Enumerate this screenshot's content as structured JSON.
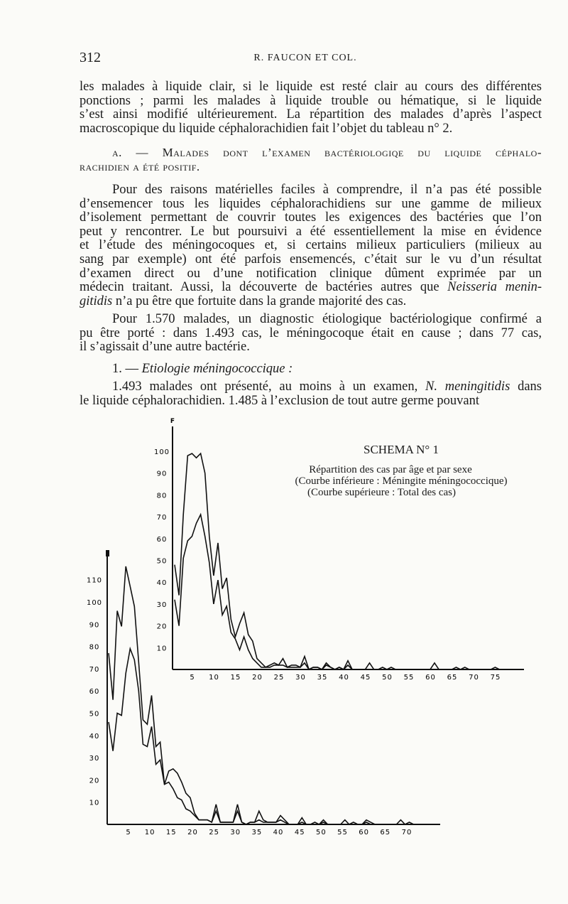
{
  "header": {
    "page_number": "312",
    "running_head": "R. FAUCON ET COL."
  },
  "body": {
    "p1": [
      [
        {
          "text": "les malades à liquide clair, si le liquide est resté clair au cours des différentes"
        }
      ],
      [
        {
          "text": "ponctions ; parmi les malades à liquide trouble ou hématique, si le liquide"
        }
      ],
      [
        {
          "text": "s’est ainsi modifié ultérieurement. La répartition des malades d’après l’aspect"
        }
      ],
      [
        {
          "text": "macroscopique du liquide céphalorachidien fait l’objet du tableau n° 2."
        }
      ]
    ],
    "heading_a": [
      [
        {
          "text": "a. — Malades dont l’examen bactériologiqe du liquide céphalo-"
        }
      ],
      [
        {
          "text": "rachidien a été positif."
        }
      ]
    ],
    "p2": [
      [
        {
          "text": "Pour des raisons matérielles faciles à comprendre, il n’a pas été possible"
        }
      ],
      [
        {
          "text": "d’ensemencer tous les liquides céphalorachidiens sur une gamme de milieux"
        }
      ],
      [
        {
          "text": "d’isolement permettant de couvrir toutes les exigences des bactéries que l’on"
        }
      ],
      [
        {
          "text": "peut y rencontrer. Le but poursuivi a été essentiellement la mise en évidence"
        }
      ],
      [
        {
          "text": "et l’étude des méningocoques et, si certains milieux particuliers (milieux au"
        }
      ],
      [
        {
          "text": "sang par exemple) ont été parfois ensemencés, c’était sur le vu d’un résultat"
        }
      ],
      [
        {
          "text": "d’examen direct ou d’une notification clinique dûment exprimée par un"
        }
      ],
      [
        {
          "text": "médecin traitant. Aussi, la découverte de bactéries autres que "
        },
        {
          "text": "Neisseria menin-",
          "italic": true
        }
      ],
      [
        {
          "text": "gitidis",
          "italic": true
        },
        {
          "text": " n’a pu être que fortuite dans la grande majorité des cas."
        }
      ]
    ],
    "p3": [
      [
        {
          "text": "Pour 1.570 malades, un diagnostic étiologique bactériologique confirmé a"
        }
      ],
      [
        {
          "text": "pu être porté : dans 1.493 cas, le méningocoque était en cause ; dans 77 cas,"
        }
      ],
      [
        {
          "text": "il s’agissait d’une autre bactérie."
        }
      ]
    ],
    "heading_1": [
      [
        {
          "text": "1. — "
        },
        {
          "text": "Etiologie méningococcique :",
          "italic": true
        }
      ]
    ],
    "p4": [
      [
        {
          "text": "1.493 malades ont présenté, au moins à un examen, "
        },
        {
          "text": "N. meningitidis",
          "italic": true
        },
        {
          "text": " dans"
        }
      ],
      [
        {
          "text": "le liquide céphalorachidien. 1.485 à l’exclusion de tout autre germe pouvant"
        }
      ]
    ]
  },
  "schema": {
    "title": "SCHEMA N° 1",
    "line1": "Répartition des cas par âge et par sexe",
    "line2": "(Courbe inférieure : Méningite méningococcique)",
    "line3": "(Courbe supérieure : Total des cas)"
  },
  "chart_data": [
    {
      "type": "line",
      "panel": "upper",
      "ylabel": "F",
      "x_ticks": [
        5,
        10,
        15,
        20,
        25,
        30,
        35,
        40,
        45,
        50,
        55,
        60,
        65,
        70,
        75
      ],
      "y_ticks": [
        10,
        20,
        30,
        40,
        50,
        60,
        70,
        80,
        90,
        100
      ],
      "ylim": [
        0,
        110
      ],
      "xlim": [
        0,
        80
      ],
      "grid": false,
      "x": [
        1,
        2,
        3,
        4,
        5,
        6,
        7,
        8,
        9,
        10,
        11,
        12,
        13,
        14,
        15,
        16,
        17,
        18,
        19,
        20,
        21,
        22,
        23,
        24,
        25,
        26,
        27,
        28,
        29,
        30,
        31,
        32,
        33,
        34,
        35,
        36,
        37,
        38,
        39,
        40,
        41,
        42,
        43,
        44,
        45,
        46,
        47,
        48,
        49,
        50,
        51,
        52,
        53,
        54,
        55,
        56,
        57,
        58,
        59,
        60,
        61,
        62,
        63,
        64,
        65,
        66,
        67,
        68,
        69,
        70,
        71,
        72,
        73,
        74,
        75,
        76,
        77,
        78,
        79
      ],
      "series": [
        {
          "values": [
            48,
            34,
            71,
            98,
            99,
            97,
            99,
            90,
            61,
            43,
            58,
            37,
            42,
            23,
            15,
            21,
            26,
            16,
            13,
            5,
            3,
            1,
            2,
            3,
            2,
            5,
            1,
            2,
            2,
            1,
            6,
            0,
            1,
            1,
            0,
            3,
            1,
            0,
            1,
            0,
            4,
            0,
            0,
            0,
            0,
            3,
            0,
            0,
            1,
            0,
            1,
            0,
            0,
            0,
            0,
            0,
            0,
            0,
            0,
            0,
            3,
            0,
            0,
            0,
            0,
            1,
            0,
            1,
            0,
            0,
            0,
            0,
            0,
            0,
            1,
            0,
            0,
            0,
            0
          ]
        },
        {
          "values": [
            32,
            20,
            51,
            59,
            61,
            67,
            71,
            61,
            49,
            30,
            41,
            25,
            29,
            17,
            14,
            9,
            15,
            9,
            5,
            3,
            1,
            1,
            1,
            2,
            2,
            2,
            1,
            1,
            1,
            1,
            3,
            0,
            1,
            1,
            0,
            2,
            1,
            0,
            1,
            0,
            2,
            0,
            0,
            0,
            0,
            0,
            0,
            0,
            0,
            0,
            0,
            0,
            0,
            0,
            0,
            0,
            0,
            0,
            0,
            0,
            0,
            0,
            0,
            0,
            0,
            0,
            0,
            0,
            0,
            0,
            0,
            0,
            0,
            0,
            0,
            0,
            0,
            0,
            0
          ]
        }
      ]
    },
    {
      "type": "line",
      "panel": "lower",
      "x_ticks": [
        5,
        10,
        15,
        20,
        25,
        30,
        35,
        40,
        45,
        50,
        55,
        60,
        65,
        70
      ],
      "y_ticks": [
        10,
        20,
        30,
        40,
        50,
        60,
        70,
        80,
        90,
        100,
        110
      ],
      "ylim": [
        0,
        120
      ],
      "xlim": [
        0,
        78
      ],
      "grid": false,
      "x": [
        1,
        2,
        3,
        4,
        5,
        6,
        7,
        8,
        9,
        10,
        11,
        12,
        13,
        14,
        15,
        16,
        17,
        18,
        19,
        20,
        21,
        22,
        23,
        24,
        25,
        26,
        27,
        28,
        29,
        30,
        31,
        32,
        33,
        34,
        35,
        36,
        37,
        38,
        39,
        40,
        41,
        42,
        43,
        44,
        45,
        46,
        47,
        48,
        49,
        50,
        51,
        52,
        53,
        54,
        55,
        56,
        57,
        58,
        59,
        60,
        61,
        62,
        63,
        64,
        65,
        66,
        67,
        68,
        69,
        70,
        71,
        72,
        73,
        74,
        75
      ],
      "series": [
        {
          "values": [
            77,
            56,
            96,
            89,
            116,
            107,
            98,
            73,
            47,
            45,
            58,
            35,
            37,
            18,
            24,
            25,
            23,
            19,
            14,
            12,
            5,
            2,
            2,
            2,
            1,
            9,
            1,
            1,
            1,
            1,
            9,
            1,
            0,
            1,
            1,
            6,
            2,
            1,
            1,
            1,
            4,
            2,
            0,
            0,
            0,
            3,
            0,
            0,
            1,
            0,
            2,
            0,
            0,
            0,
            0,
            2,
            0,
            1,
            0,
            0,
            2,
            1,
            0,
            0,
            0,
            0,
            0,
            0,
            2,
            0,
            1,
            0,
            0,
            0,
            0
          ]
        },
        {
          "values": [
            46,
            33,
            50,
            49,
            68,
            79,
            74,
            60,
            36,
            35,
            44,
            27,
            29,
            18,
            19,
            16,
            12,
            11,
            7,
            6,
            4,
            2,
            2,
            2,
            1,
            6,
            1,
            1,
            1,
            1,
            6,
            1,
            0,
            1,
            1,
            2,
            1,
            1,
            1,
            1,
            2,
            1,
            0,
            0,
            0,
            1,
            0,
            0,
            0,
            0,
            1,
            0,
            0,
            0,
            0,
            0,
            0,
            0,
            0,
            0,
            1,
            0,
            0,
            0,
            0,
            0,
            0,
            0,
            0,
            0,
            0,
            0,
            0,
            0,
            0
          ]
        }
      ]
    }
  ]
}
